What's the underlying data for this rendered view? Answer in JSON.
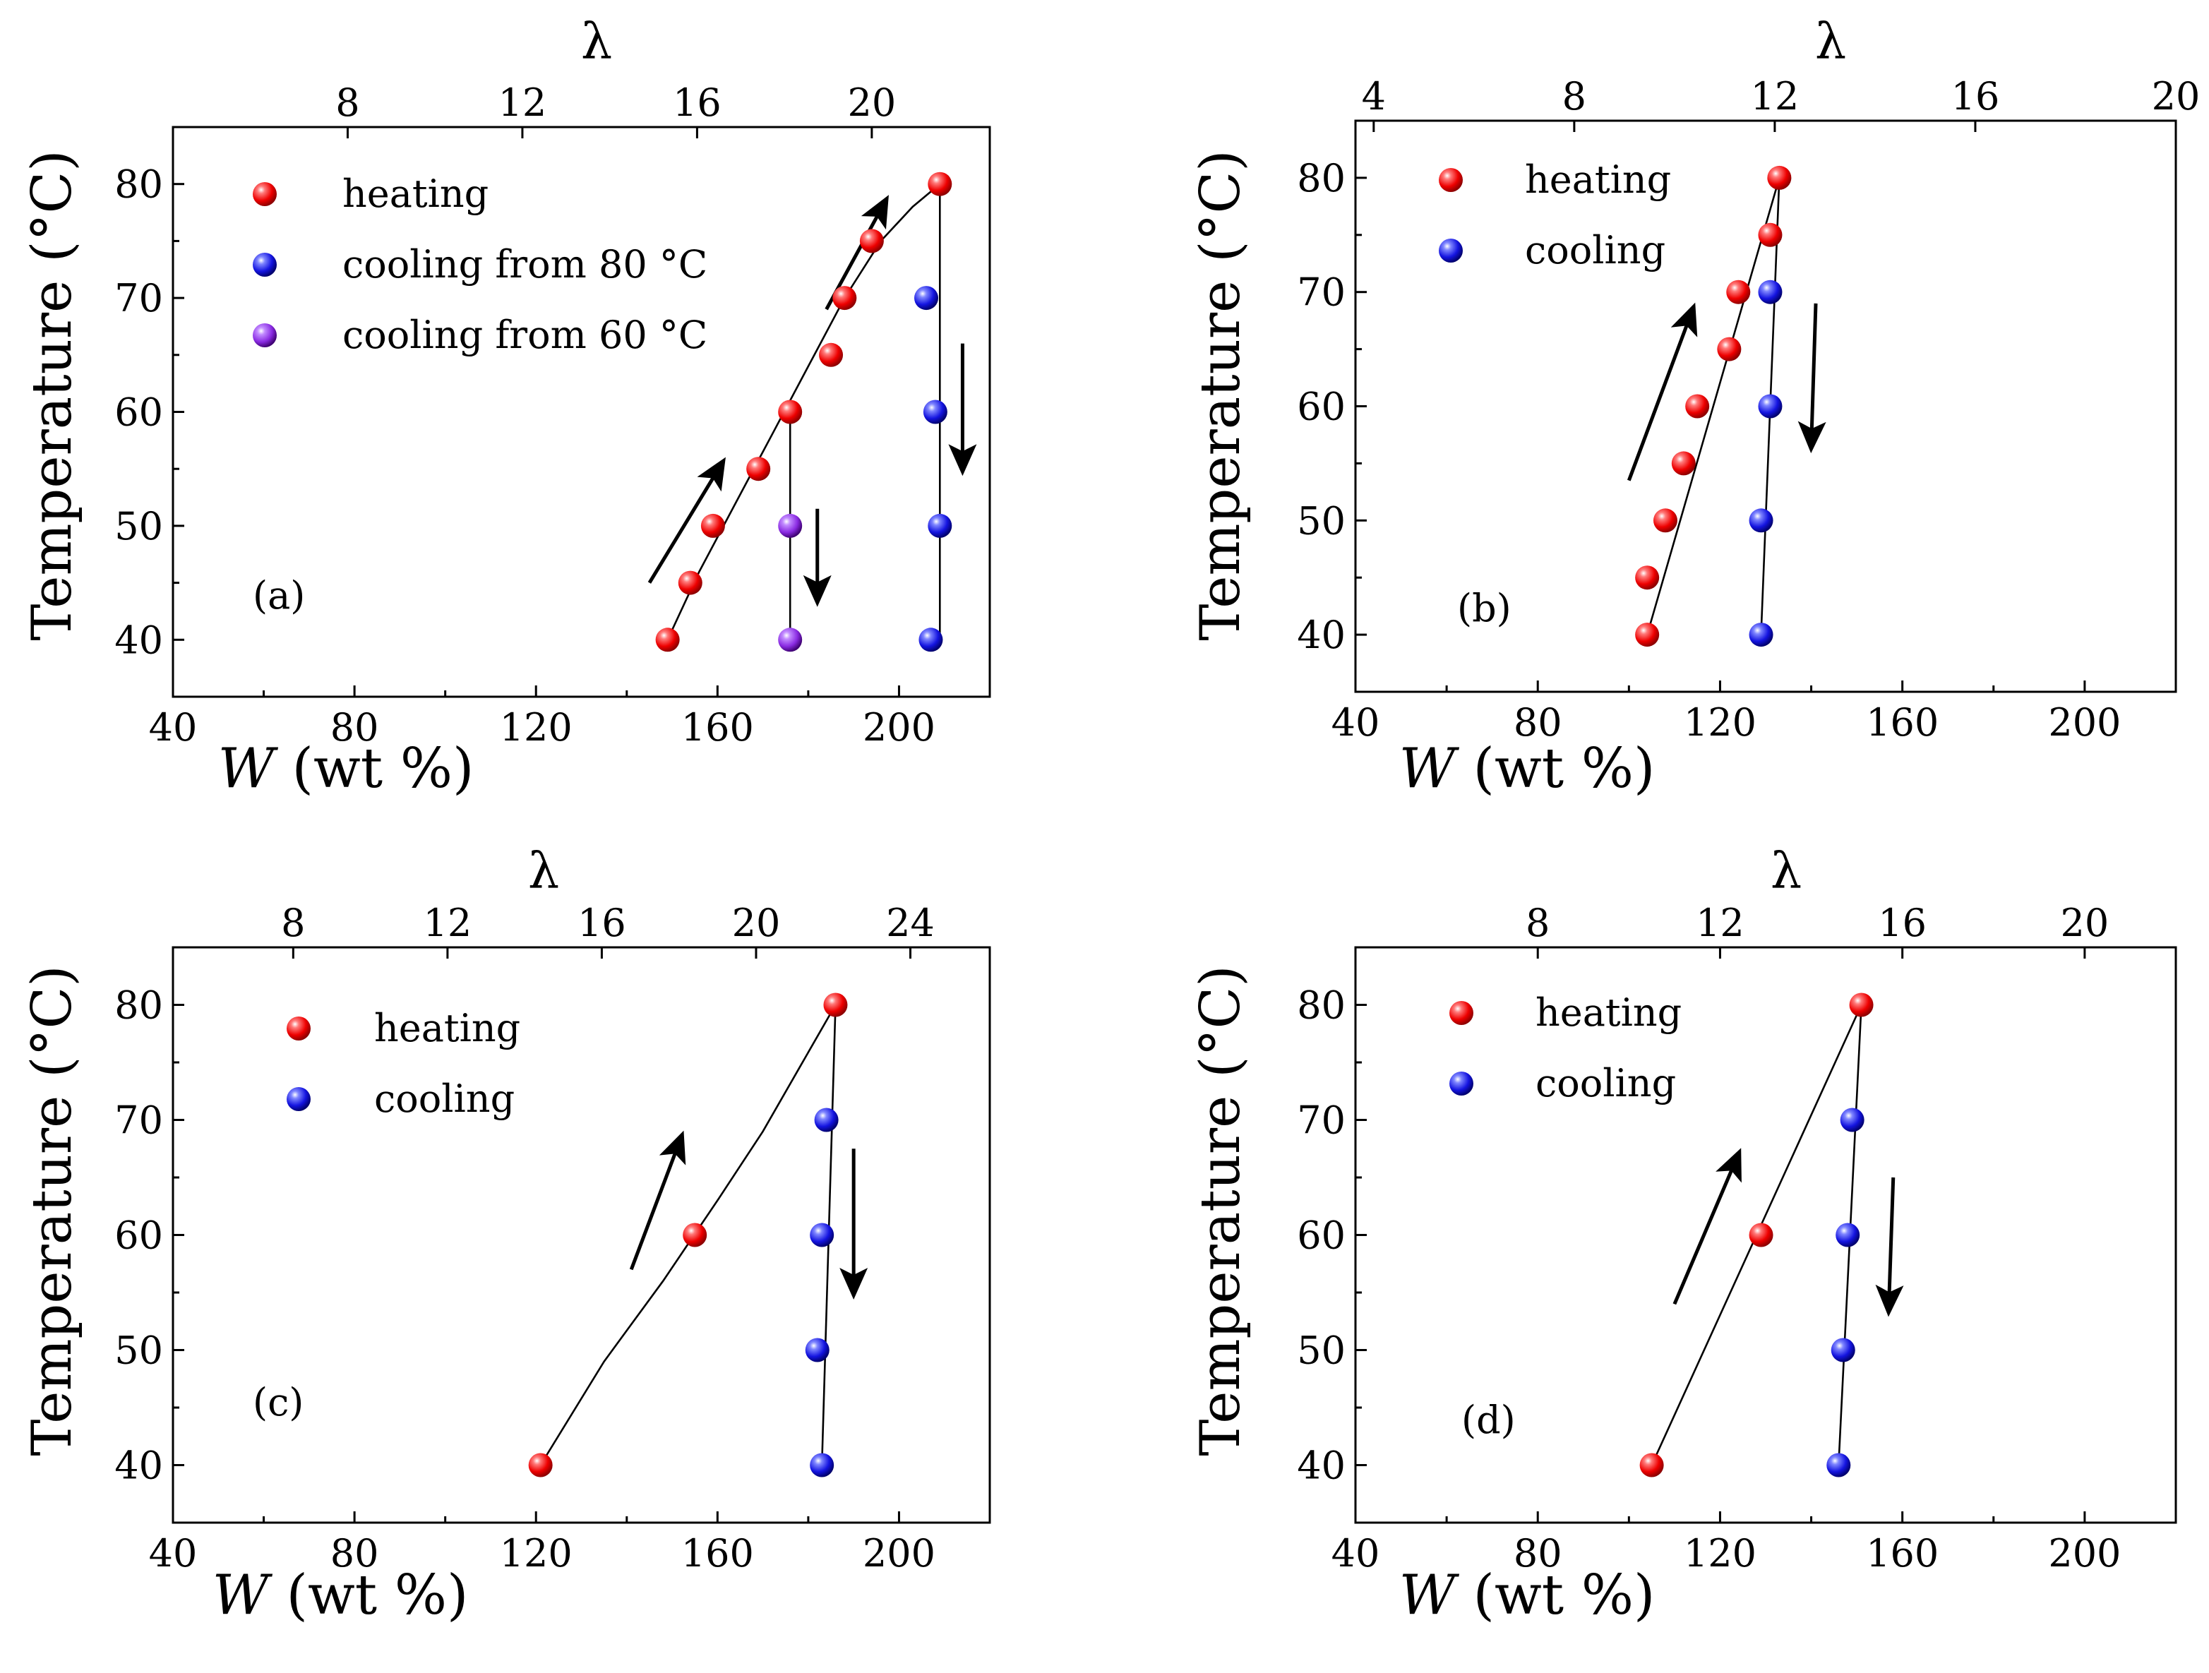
{
  "chart_data": [
    {
      "type": "scatter",
      "panel_label": "(a)",
      "xlabel_var": "W",
      "xlabel_unit": " (wt %)",
      "ylabel": "Temperature (°C)",
      "top_xlabel": "λ",
      "xlim": [
        40,
        220
      ],
      "ylim": [
        35,
        85
      ],
      "xticks": [
        40,
        80,
        120,
        160,
        200
      ],
      "yticks": [
        40,
        50,
        60,
        70,
        80
      ],
      "top_ticks": [
        {
          "label": "8",
          "x": 78.5
        },
        {
          "label": "12",
          "x": 117
        },
        {
          "label": "16",
          "x": 155.5
        },
        {
          "label": "20",
          "x": 194
        }
      ],
      "legend": [
        {
          "label": "heating",
          "color": "red"
        },
        {
          "label": "cooling from 80 °C",
          "color": "blue"
        },
        {
          "label": "cooling from 60 °C",
          "color": "purple"
        }
      ],
      "series": [
        {
          "name": "heating",
          "color": "red",
          "points": [
            [
              149,
              40
            ],
            [
              154,
              45
            ],
            [
              159,
              50
            ],
            [
              169,
              55
            ],
            [
              176,
              60
            ],
            [
              185,
              65
            ],
            [
              188,
              70
            ],
            [
              194,
              75
            ],
            [
              209,
              80
            ]
          ]
        },
        {
          "name": "cooling from 80 °C",
          "color": "blue",
          "points": [
            [
              206,
              70
            ],
            [
              208,
              60
            ],
            [
              209,
              50
            ],
            [
              207,
              40
            ]
          ]
        },
        {
          "name": "cooling from 60 °C",
          "color": "purple",
          "points": [
            [
              176,
              50
            ],
            [
              176,
              40
            ]
          ]
        }
      ],
      "curves": [
        {
          "points": [
            [
              149,
              40
            ],
            [
              156,
              46
            ],
            [
              164,
              52
            ],
            [
              172,
              58
            ],
            [
              180,
              64
            ],
            [
              188,
              70
            ],
            [
              196,
              75
            ],
            [
              203,
              78
            ],
            [
              209,
              80
            ]
          ]
        },
        {
          "points": [
            [
              209,
              80
            ],
            [
              209,
              40
            ]
          ]
        },
        {
          "points": [
            [
              176,
              60
            ],
            [
              176,
              40
            ]
          ]
        }
      ],
      "arrows": [
        {
          "from": [
            145,
            45
          ],
          "to": [
            161,
            55.5
          ],
          "direction": "up"
        },
        {
          "from": [
            184,
            69
          ],
          "to": [
            197,
            78.5
          ],
          "direction": "up"
        },
        {
          "from": [
            182,
            51.5
          ],
          "to": [
            182,
            43.5
          ],
          "direction": "down"
        },
        {
          "from": [
            214,
            66
          ],
          "to": [
            214,
            55
          ],
          "direction": "down"
        }
      ]
    },
    {
      "type": "scatter",
      "panel_label": "(b)",
      "xlabel_var": "W",
      "xlabel_unit": " (wt %)",
      "ylabel": "Temperature (°C)",
      "top_xlabel": "λ",
      "xlim": [
        40,
        220
      ],
      "ylim": [
        35,
        85
      ],
      "xticks": [
        40,
        80,
        120,
        160,
        200
      ],
      "yticks": [
        40,
        50,
        60,
        70,
        80
      ],
      "top_ticks": [
        {
          "label": "4",
          "x": 44
        },
        {
          "label": "8",
          "x": 88
        },
        {
          "label": "12",
          "x": 132
        },
        {
          "label": "16",
          "x": 176
        },
        {
          "label": "20",
          "x": 220
        }
      ],
      "legend": [
        {
          "label": "heating",
          "color": "red"
        },
        {
          "label": "cooling",
          "color": "blue"
        }
      ],
      "series": [
        {
          "name": "heating",
          "color": "red",
          "points": [
            [
              104,
              40
            ],
            [
              104,
              45
            ],
            [
              108,
              50
            ],
            [
              112,
              55
            ],
            [
              115,
              60
            ],
            [
              122,
              65
            ],
            [
              124,
              70
            ],
            [
              131,
              75
            ],
            [
              133,
              80
            ]
          ]
        },
        {
          "name": "cooling",
          "color": "blue",
          "points": [
            [
              129,
              40
            ],
            [
              129,
              50
            ],
            [
              131,
              60
            ],
            [
              131,
              70
            ]
          ]
        }
      ],
      "curves": [
        {
          "points": [
            [
              104,
              40
            ],
            [
              133,
              80
            ]
          ]
        },
        {
          "points": [
            [
              133,
              80
            ],
            [
              129,
              40
            ]
          ]
        }
      ],
      "arrows": [
        {
          "from": [
            100,
            53.5
          ],
          "to": [
            114,
            68.5
          ],
          "direction": "up"
        },
        {
          "from": [
            141,
            69
          ],
          "to": [
            140,
            56.5
          ],
          "direction": "down"
        }
      ]
    },
    {
      "type": "scatter",
      "panel_label": "(c)",
      "xlabel_var": "W",
      "xlabel_unit": " (wt %)",
      "ylabel": "Temperature (°C)",
      "top_xlabel": "λ",
      "xlim": [
        40,
        220
      ],
      "ylim": [
        35,
        85
      ],
      "xticks": [
        40,
        80,
        120,
        160,
        200
      ],
      "yticks": [
        40,
        50,
        60,
        70,
        80
      ],
      "top_ticks": [
        {
          "label": "8",
          "x": 66.5
        },
        {
          "label": "12",
          "x": 100.5
        },
        {
          "label": "16",
          "x": 134.5
        },
        {
          "label": "20",
          "x": 168.5
        },
        {
          "label": "24",
          "x": 202.5
        }
      ],
      "legend": [
        {
          "label": "heating",
          "color": "red"
        },
        {
          "label": "cooling",
          "color": "blue"
        }
      ],
      "series": [
        {
          "name": "heating",
          "color": "red",
          "points": [
            [
              121,
              40
            ],
            [
              155,
              60
            ],
            [
              186,
              80
            ]
          ]
        },
        {
          "name": "cooling",
          "color": "blue",
          "points": [
            [
              183,
              40
            ],
            [
              182,
              50
            ],
            [
              183,
              60
            ],
            [
              184,
              70
            ]
          ]
        }
      ],
      "curves": [
        {
          "points": [
            [
              121,
              40
            ],
            [
              135,
              49
            ],
            [
              148,
              56
            ],
            [
              160,
              63
            ],
            [
              170,
              69
            ],
            [
              178,
              74.5
            ],
            [
              186,
              80
            ]
          ]
        },
        {
          "points": [
            [
              186,
              80
            ],
            [
              183,
              40
            ]
          ]
        }
      ],
      "arrows": [
        {
          "from": [
            141,
            57
          ],
          "to": [
            152,
            68.5
          ],
          "direction": "up"
        },
        {
          "from": [
            190,
            67.5
          ],
          "to": [
            190,
            55
          ],
          "direction": "down"
        }
      ]
    },
    {
      "type": "scatter",
      "panel_label": "(d)",
      "xlabel_var": "W",
      "xlabel_unit": " (wt %)",
      "ylabel": "Temperature (°C)",
      "top_xlabel": "λ",
      "xlim": [
        40,
        220
      ],
      "ylim": [
        35,
        85
      ],
      "xticks": [
        40,
        80,
        120,
        160,
        200
      ],
      "yticks": [
        40,
        50,
        60,
        70,
        80
      ],
      "top_ticks": [
        {
          "label": "8",
          "x": 80
        },
        {
          "label": "12",
          "x": 120
        },
        {
          "label": "16",
          "x": 160
        },
        {
          "label": "20",
          "x": 200
        }
      ],
      "legend": [
        {
          "label": "heating",
          "color": "red"
        },
        {
          "label": "cooling",
          "color": "blue"
        }
      ],
      "series": [
        {
          "name": "heating",
          "color": "red",
          "points": [
            [
              105,
              40
            ],
            [
              129,
              60
            ],
            [
              151,
              80
            ]
          ]
        },
        {
          "name": "cooling",
          "color": "blue",
          "points": [
            [
              146,
              40
            ],
            [
              147,
              50
            ],
            [
              148,
              60
            ],
            [
              149,
              70
            ]
          ]
        }
      ],
      "curves": [
        {
          "points": [
            [
              105,
              40
            ],
            [
              151,
              80
            ]
          ]
        },
        {
          "points": [
            [
              151,
              80
            ],
            [
              146,
              40
            ]
          ]
        }
      ],
      "arrows": [
        {
          "from": [
            110,
            54
          ],
          "to": [
            124,
            67
          ],
          "direction": "up"
        },
        {
          "from": [
            158,
            65
          ],
          "to": [
            157,
            53.5
          ],
          "direction": "down"
        }
      ]
    }
  ],
  "colors": {
    "red": "#ff1a1a",
    "blue": "#1515ee",
    "purple": "#8a2be2",
    "axis": "#000000",
    "background": "#ffffff"
  }
}
